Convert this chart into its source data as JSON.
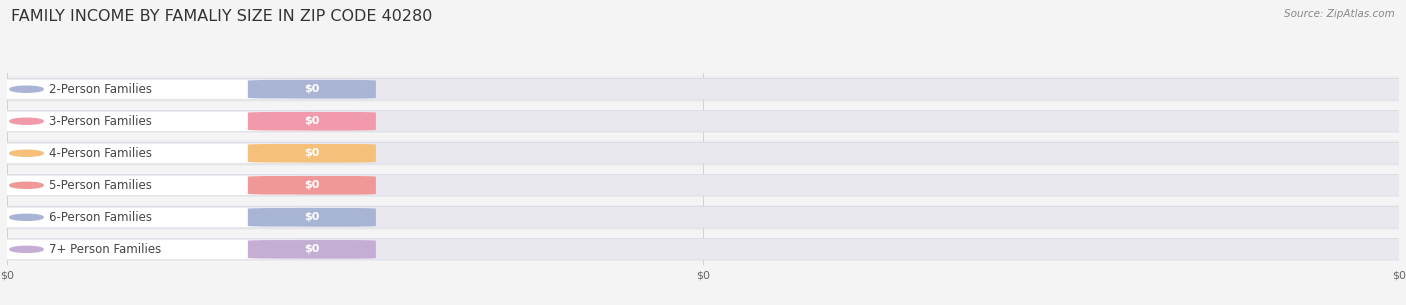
{
  "title": "FAMILY INCOME BY FAMALIY SIZE IN ZIP CODE 40280",
  "source": "Source: ZipAtlas.com",
  "categories": [
    "2-Person Families",
    "3-Person Families",
    "4-Person Families",
    "5-Person Families",
    "6-Person Families",
    "7+ Person Families"
  ],
  "values": [
    0,
    0,
    0,
    0,
    0,
    0
  ],
  "bar_colors": [
    "#aab4d4",
    "#f09aab",
    "#f5c07a",
    "#f09898",
    "#a8b4d4",
    "#c4aed4"
  ],
  "circle_colors": [
    "#aab4d4",
    "#f09aab",
    "#f5c07a",
    "#f09898",
    "#a8b4d4",
    "#c4aed4"
  ],
  "background_color": "#f4f4f4",
  "row_bg_color": "#ececec",
  "row_bg_light": "#f5f5f5",
  "white_pill_color": "#ffffff",
  "title_fontsize": 11.5,
  "label_fontsize": 8.5,
  "value_fontsize": 8,
  "source_fontsize": 7.5,
  "tick_fontsize": 8
}
